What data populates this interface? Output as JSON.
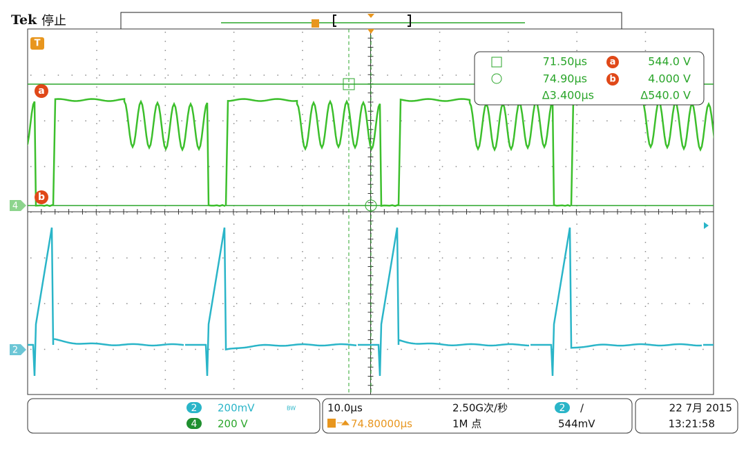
{
  "header": {
    "brand": "Tek",
    "status": "停止"
  },
  "markers": {
    "trigger": "T",
    "cursor_a": "a",
    "cursor_b": "b",
    "channel4": "4",
    "channel2": "2"
  },
  "cursor_readout": {
    "rows": [
      [
        "71.50µs",
        "544.0 V"
      ],
      [
        "74.90µs",
        "4.000 V"
      ],
      [
        "Δ3.400µs",
        "Δ540.0 V"
      ]
    ]
  },
  "channels": [
    {
      "id": "2",
      "scale": "200mV",
      "bw": "BW"
    },
    {
      "id": "4",
      "scale": "200 V"
    }
  ],
  "timebase": {
    "scale": "10.0µs",
    "sample_rate": "2.50G次/秒",
    "trigger_pos": "74.80000µs",
    "record_length": "1M 点"
  },
  "trigger": {
    "source": "2",
    "slope": "/",
    "level": "544mV"
  },
  "datetime": {
    "date": "22 7月 2015",
    "time": "13:21:58"
  }
}
